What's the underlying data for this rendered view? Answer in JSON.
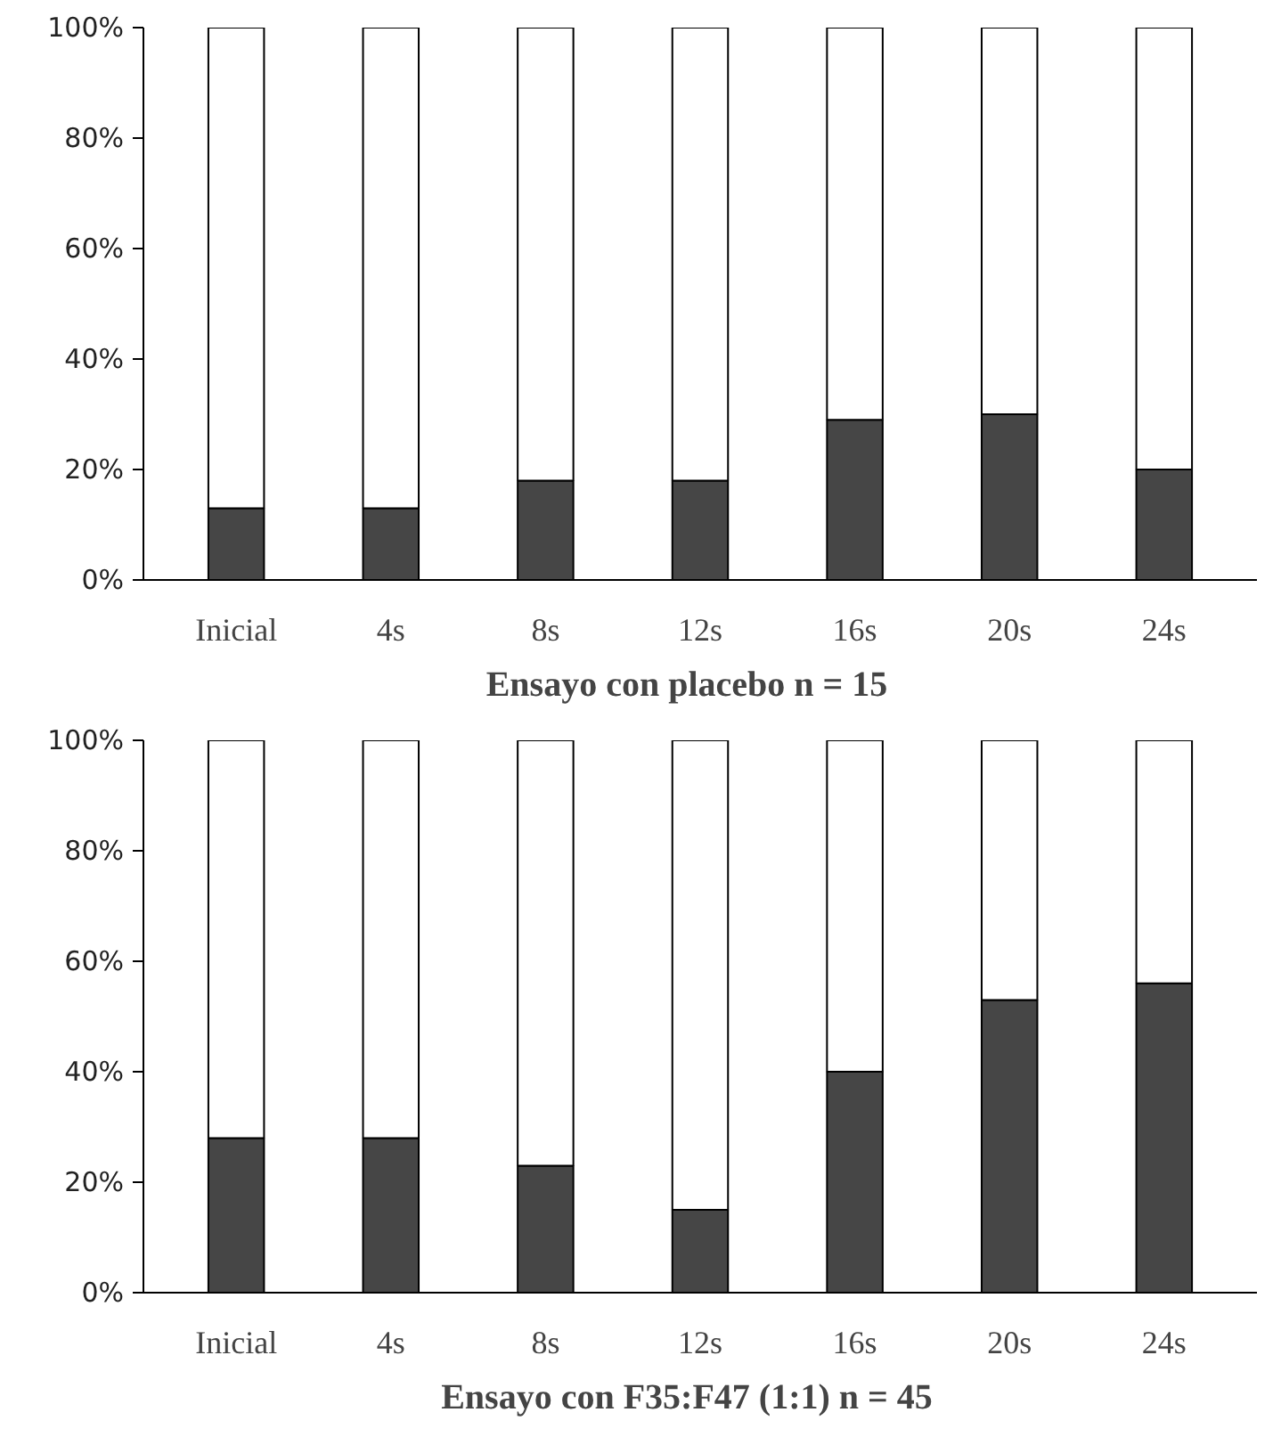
{
  "chart_data": [
    {
      "type": "bar",
      "stacked": true,
      "title": "Ensayo con placebo    n = 15",
      "categories": [
        "Inicial",
        "4s",
        "8s",
        "12s",
        "16s",
        "20s",
        "24s"
      ],
      "series": [
        {
          "color": "#464646",
          "values": [
            13,
            13,
            18,
            18,
            29,
            30,
            20
          ]
        },
        {
          "color": "#ffffff",
          "values": [
            87,
            87,
            82,
            82,
            71,
            70,
            80
          ]
        }
      ],
      "ylim": [
        0,
        100
      ],
      "yticks": [
        {
          "value": 0,
          "label": "0%"
        },
        {
          "value": 20,
          "label": "20%"
        },
        {
          "value": 40,
          "label": "40%"
        },
        {
          "value": 60,
          "label": "60%"
        },
        {
          "value": 80,
          "label": "80%"
        },
        {
          "value": 100,
          "label": "100%"
        }
      ],
      "grid": false
    },
    {
      "type": "bar",
      "stacked": true,
      "title": "Ensayo con F35:F47 (1:1)    n = 45",
      "categories": [
        "Inicial",
        "4s",
        "8s",
        "12s",
        "16s",
        "20s",
        "24s"
      ],
      "series": [
        {
          "color": "#464646",
          "values": [
            28,
            28,
            23,
            15,
            40,
            53,
            56
          ]
        },
        {
          "color": "#ffffff",
          "values": [
            72,
            72,
            77,
            85,
            60,
            47,
            44
          ]
        }
      ],
      "ylim": [
        0,
        100
      ],
      "yticks": [
        {
          "value": 0,
          "label": "0%"
        },
        {
          "value": 20,
          "label": "20%"
        },
        {
          "value": 40,
          "label": "40%"
        },
        {
          "value": 60,
          "label": "60%"
        },
        {
          "value": 80,
          "label": "80%"
        },
        {
          "value": 100,
          "label": "100%"
        }
      ],
      "grid": false
    }
  ]
}
